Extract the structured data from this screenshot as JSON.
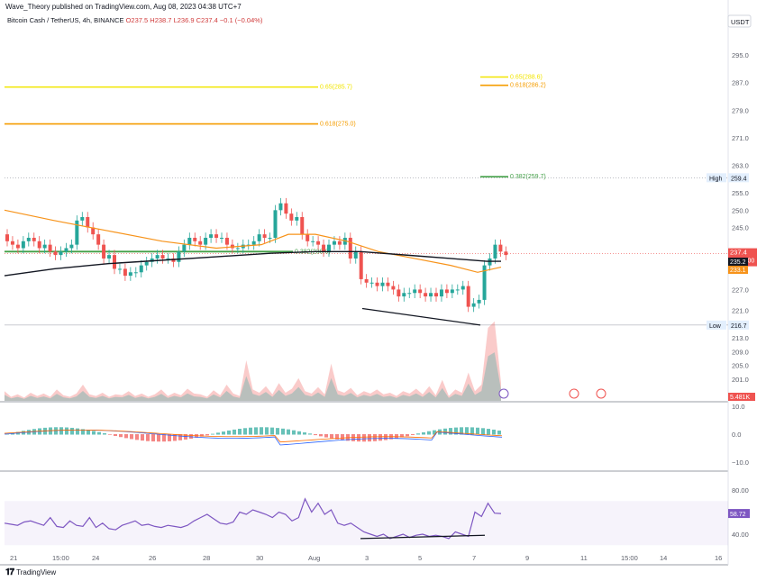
{
  "header": {
    "published": "Wave_Theory published on TradingView.com, Aug 08, 2023 04:38 UTC+7"
  },
  "symbol": {
    "name": "Bitcoin Cash / TetherUS, 4h, BINANCE",
    "ohlc_o": "O237.5",
    "ohlc_h": "H238.7",
    "ohlc_l": "L236.9",
    "ohlc_c": "C237.4",
    "change": "−0.1 (−0.04%)"
  },
  "currency_button": "USDT",
  "price_axis": [
    "295.0",
    "287.0",
    "279.0",
    "271.0",
    "263.0",
    "255.0",
    "250.0",
    "245.0",
    "227.0",
    "221.0",
    "213.0",
    "209.0",
    "205.0",
    "201.0"
  ],
  "price_badges": {
    "high_label": "High",
    "high_value": "259.4",
    "low_label": "Low",
    "low_value": "216.7",
    "last_price": "237.4",
    "countdown": "02:22:00",
    "ma_black": "235.2",
    "ma_orange": "233.1",
    "volume": "5.481K"
  },
  "fib_levels": {
    "left_065": "0.65(285.7)",
    "left_0618": "0.618(275.0)",
    "left_0382": "0.382(238.0)",
    "right_065": "0.65(288.6)",
    "right_0618": "0.618(286.2)",
    "right_0382": "0.382(259.7)"
  },
  "macd_axis": [
    "10.0",
    "0.0",
    "−10.0"
  ],
  "rsi_axis": [
    "80.00",
    "40.00"
  ],
  "rsi_value": "58.72",
  "time_axis": [
    "21",
    "15:00",
    "24",
    "26",
    "28",
    "30",
    "Aug",
    "3",
    "5",
    "7",
    "9",
    "11",
    "15:00",
    "14",
    "16"
  ],
  "footer": {
    "brand": "TradingView"
  },
  "colors": {
    "up": "#26a69a",
    "down": "#ef5350",
    "ma_orange": "#f7931a",
    "ma_black": "#131722",
    "fib_yellow": "#f2e600",
    "fib_orange": "#f59d00",
    "fib_green": "#43a047",
    "rsi": "#7e57c2"
  }
}
